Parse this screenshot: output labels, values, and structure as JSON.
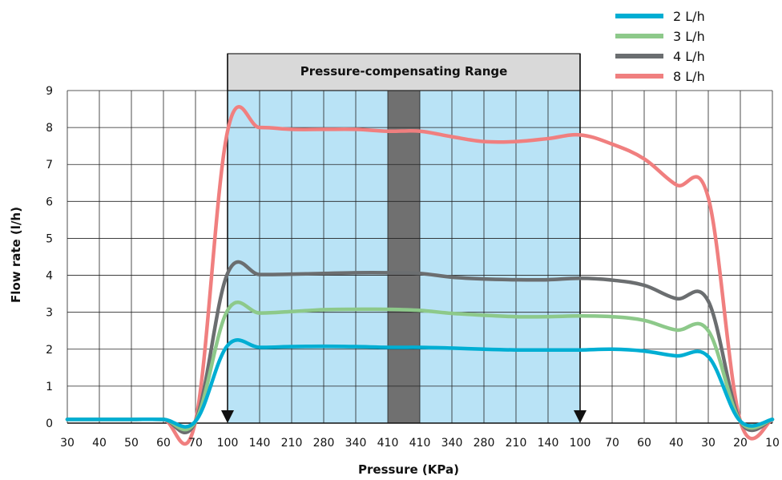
{
  "chart_data": {
    "type": "line",
    "title": "",
    "xlabel": "Pressure (KPa)",
    "ylabel": "Flow rate (l/h)",
    "ylim": [
      0,
      9
    ],
    "yticks": [
      "0",
      "1",
      "2",
      "3",
      "4",
      "5",
      "6",
      "7",
      "8",
      "9"
    ],
    "categories": [
      "30",
      "40",
      "50",
      "60",
      "70",
      "100",
      "140",
      "210",
      "280",
      "340",
      "410",
      "410",
      "340",
      "280",
      "210",
      "140",
      "100",
      "70",
      "60",
      "40",
      "30",
      "20",
      "10"
    ],
    "grid": true,
    "legend_position": "top-right",
    "annotation": "Pressure-compensating Range",
    "range_start_index": 5,
    "range_end_index": 16,
    "highlight_start_index": 10,
    "highlight_end_index": 11,
    "colors": {
      "range_fill": "#b9e3f6",
      "range_header": "#d9d9d9",
      "highlight": "#707070",
      "grid": "#222222"
    },
    "series": [
      {
        "name": "8 L/h",
        "color": "#f07f7f",
        "values": [
          0.1,
          0.1,
          0.1,
          0.1,
          0.05,
          7.9,
          8.0,
          7.95,
          7.95,
          7.95,
          7.9,
          7.9,
          7.75,
          7.62,
          7.62,
          7.7,
          7.8,
          7.55,
          7.15,
          6.45,
          6.1,
          0.05,
          0.1
        ]
      },
      {
        "name": "4 L/h",
        "color": "#6b6e70",
        "values": [
          0.1,
          0.1,
          0.1,
          0.1,
          0.05,
          4.05,
          4.02,
          4.03,
          4.05,
          4.07,
          4.07,
          4.05,
          3.95,
          3.9,
          3.88,
          3.88,
          3.92,
          3.87,
          3.73,
          3.37,
          3.3,
          0.05,
          0.1
        ]
      },
      {
        "name": "3 L/h",
        "color": "#8dc98a",
        "values": [
          0.1,
          0.1,
          0.1,
          0.1,
          0.05,
          3.05,
          2.98,
          3.02,
          3.07,
          3.08,
          3.08,
          3.05,
          2.97,
          2.92,
          2.88,
          2.88,
          2.9,
          2.88,
          2.78,
          2.52,
          2.5,
          0.05,
          0.1
        ]
      },
      {
        "name": "2 L/h",
        "color": "#00aed3",
        "values": [
          0.1,
          0.1,
          0.1,
          0.1,
          0.05,
          2.1,
          2.05,
          2.07,
          2.08,
          2.07,
          2.05,
          2.05,
          2.03,
          2.0,
          1.98,
          1.98,
          1.98,
          2.0,
          1.95,
          1.82,
          1.8,
          0.05,
          0.1
        ]
      }
    ],
    "legend_order": [
      "2 L/h",
      "3 L/h",
      "4 L/h",
      "8 L/h"
    ]
  }
}
